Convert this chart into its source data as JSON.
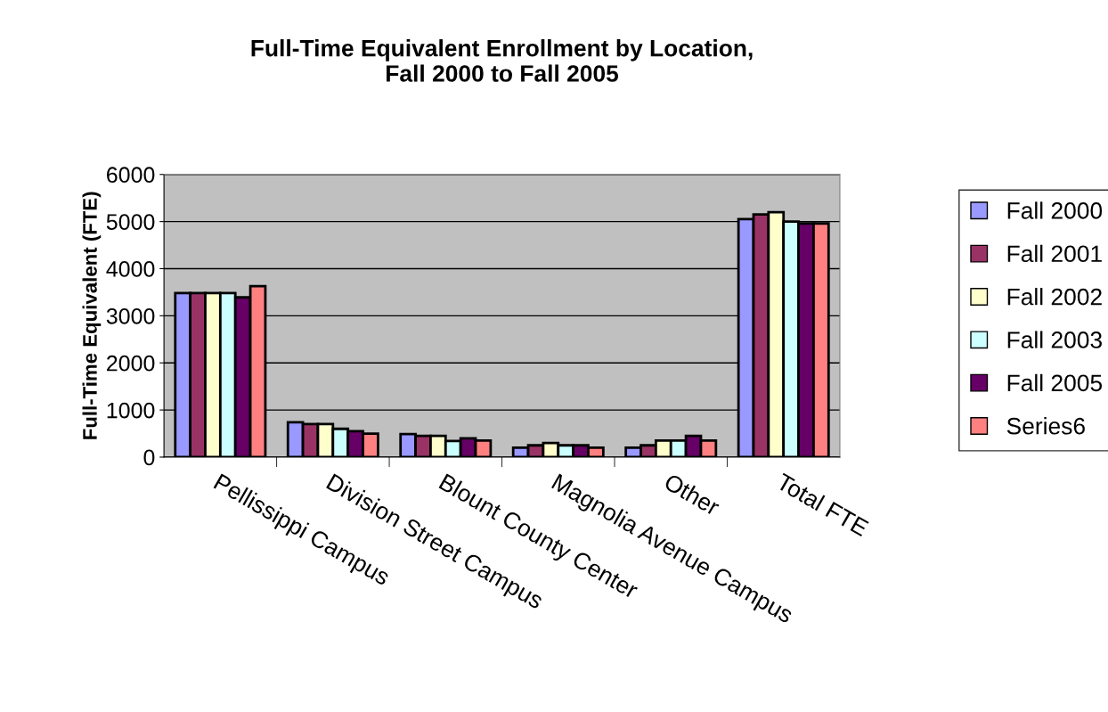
{
  "chart_data": {
    "type": "bar",
    "title": "Full-Time Equivalent Enrollment by Location,\nFall 2000 to Fall 2005",
    "ylabel": "Full-Time Equivalent (FTE)",
    "categories": [
      "Pellissippi Campus",
      "Division Street Campus",
      "Blount County Center",
      "Magnolia Avenue Campus",
      "Other",
      "Total FTE"
    ],
    "series": [
      {
        "name": "Fall 2000",
        "color": "#9999ff",
        "values": [
          3480,
          740,
          490,
          200,
          200,
          5050
        ]
      },
      {
        "name": "Fall 2001",
        "color": "#993366",
        "values": [
          3480,
          700,
          450,
          250,
          250,
          5150
        ]
      },
      {
        "name": "Fall 2002",
        "color": "#ffffcc",
        "values": [
          3480,
          700,
          450,
          300,
          350,
          5200
        ]
      },
      {
        "name": "Fall 2003",
        "color": "#ccffff",
        "values": [
          3480,
          600,
          340,
          250,
          350,
          5000
        ]
      },
      {
        "name": "Fall 2005",
        "color": "#660066",
        "values": [
          3390,
          550,
          400,
          250,
          450,
          4960
        ]
      },
      {
        "name": "Series6",
        "color": "#ff8080",
        "values": [
          3630,
          500,
          350,
          200,
          350,
          4960
        ]
      }
    ],
    "ylim": [
      0,
      6000
    ],
    "yticks": [
      0,
      1000,
      2000,
      3000,
      4000,
      5000,
      6000
    ],
    "grid": "y",
    "legend": "right"
  }
}
